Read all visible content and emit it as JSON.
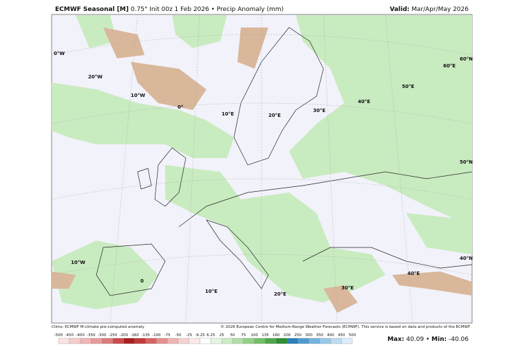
{
  "header": {
    "title_bold": "ECMWF Seasonal [M]",
    "title_rest": "0.75° Init 00z 1 Feb 2026 • Precip Anomaly (mm)",
    "valid_label": "Valid:",
    "valid_value": "Mar/Apr/May 2026"
  },
  "grid_labels": [
    "0°W",
    "20°W",
    "10°W",
    "0°",
    "10°E",
    "20°E",
    "30°E",
    "40°E",
    "50°E",
    "60°E",
    "60°N",
    "50°N",
    "40°N",
    "10°W",
    "0",
    "10°E",
    "20°E",
    "30°E",
    "40°E"
  ],
  "footer": {
    "climo": "Climo: ECMWF M-climate pre-computed anomaly",
    "copyright": "© 2026 European Centre for Medium-Range Weather Forecasts (ECMWF). This service is based on data and products of the ECMWF.",
    "max_label": "Max:",
    "max_value": "40.09",
    "min_label": "Min:",
    "min_value": "-40.06"
  },
  "colorbar": {
    "labels": [
      "-500",
      "-450",
      "-400",
      "-350",
      "-300",
      "-250",
      "-200",
      "-160",
      "-135",
      "-100",
      "-75",
      "-50",
      "-25",
      "-6.25",
      "6.25",
      "25",
      "50",
      "75",
      "100",
      "135",
      "160",
      "200",
      "250",
      "300",
      "350",
      "400",
      "450",
      "500"
    ],
    "colors": [
      "#fbe3e3",
      "#f6cccc",
      "#f0b4b4",
      "#e89a9a",
      "#dd7b7b",
      "#c94c4c",
      "#a82020",
      "#c23a3a",
      "#d86464",
      "#e58f8f",
      "#efb4b4",
      "#f6d2d2",
      "#fbe9e9",
      "#ffffff",
      "#e6f5e2",
      "#cdebc6",
      "#b1dfa6",
      "#93d087",
      "#72bf68",
      "#4ea84a",
      "#2f8f35",
      "#2c7fb8",
      "#4f9bd0",
      "#74b4e0",
      "#98c9ea",
      "#bcdcf2",
      "#ddeefa"
    ]
  }
}
